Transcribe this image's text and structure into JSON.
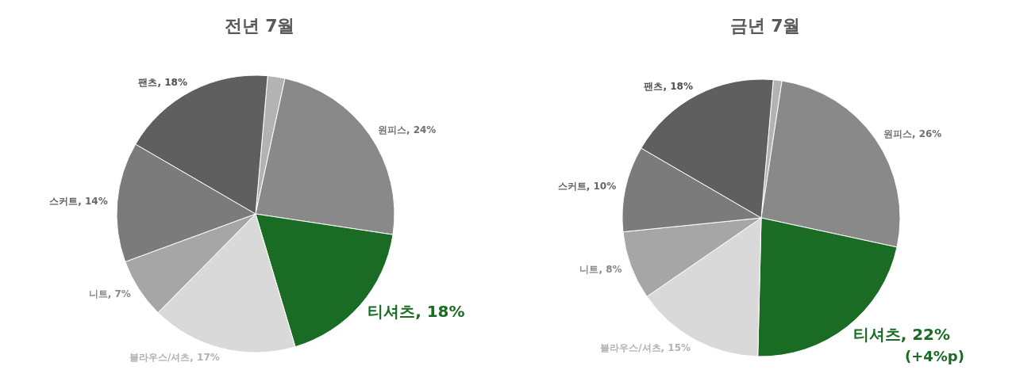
{
  "chart_data": [
    {
      "type": "pie",
      "title": "전년 7월",
      "categories": [
        null,
        "원피스",
        "티셔츠",
        "블라우스/셔츠",
        "니트",
        "스커트",
        "팬츠"
      ],
      "values": [
        2,
        24,
        18,
        17,
        7,
        14,
        18
      ],
      "value_labels": [
        null,
        "24%",
        "18%",
        "17%",
        "7%",
        "14%",
        "18%"
      ],
      "colors": [
        "#b3b3b3",
        "#898989",
        "#1a6b23",
        "#d9d9d9",
        "#a6a6a6",
        "#7b7b7b",
        "#5f5f5f"
      ]
    },
    {
      "type": "pie",
      "title": "금년 7월",
      "categories": [
        null,
        "원피스",
        "티셔츠",
        "블라우스/셔츠",
        "니트",
        "스커트",
        "팬츠"
      ],
      "values": [
        1,
        26,
        22,
        15,
        8,
        10,
        18
      ],
      "value_labels": [
        null,
        "26%",
        "22%",
        "15%",
        "8%",
        "10%",
        "18%"
      ],
      "colors": [
        "#b3b3b3",
        "#898989",
        "#1a6b23",
        "#d9d9d9",
        "#a6a6a6",
        "#7b7b7b",
        "#5f5f5f"
      ],
      "annotations": [
        "(+4%p)"
      ]
    }
  ]
}
